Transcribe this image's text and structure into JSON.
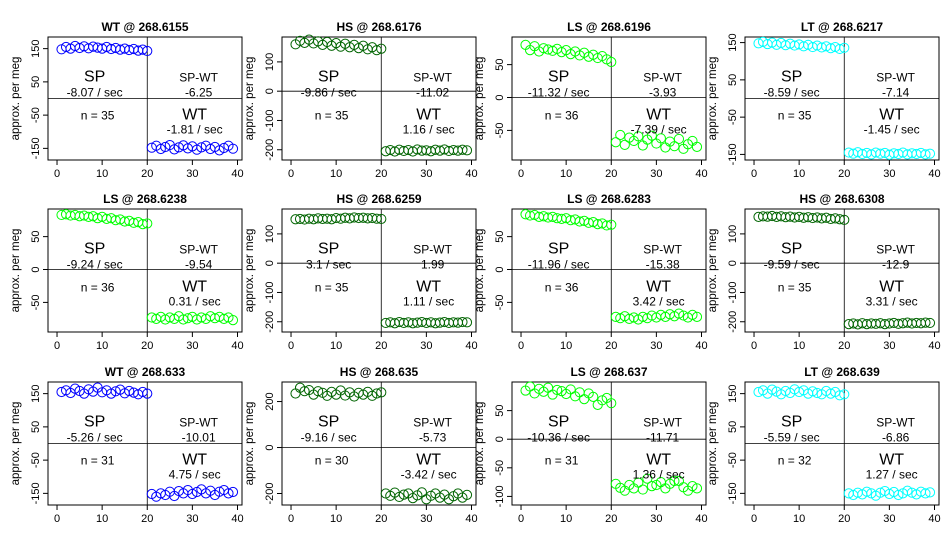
{
  "figure": {
    "ylabel": "approx. per meg",
    "ylabel_text": "approx. per meg"
  },
  "chart_data": [
    {
      "type": "scatter",
      "title": "WT @ 268.6155",
      "color": "#0000ff",
      "xlim": [
        -2,
        41
      ],
      "ylim": [
        -185,
        185
      ],
      "xticks": [
        0,
        10,
        20,
        30,
        40
      ],
      "yticks": [
        -150,
        -50,
        50,
        150
      ],
      "divider_x": 20,
      "divider_y": 0,
      "sp": {
        "label": "SP",
        "rate": "-8.07 / sec"
      },
      "spwt": {
        "label": "SP-WT",
        "value": "-6.25"
      },
      "wt": {
        "label": "WT",
        "rate": "-1.81 / sec"
      },
      "n": "n = 35",
      "sp_series": {
        "x0": 1,
        "step": 1,
        "values": [
          148,
          155,
          150,
          158,
          152,
          157,
          151,
          156,
          153,
          150,
          155,
          149,
          152,
          147,
          150,
          146,
          149,
          144,
          147,
          143
        ]
      },
      "wt_series": {
        "x0": 21,
        "step": 1,
        "values": [
          -148,
          -142,
          -152,
          -146,
          -140,
          -153,
          -147,
          -141,
          -150,
          -144,
          -154,
          -147,
          -142,
          -152,
          -146,
          -156,
          -149,
          -142,
          -151
        ]
      }
    },
    {
      "type": "scatter",
      "title": "HS @ 268.6176",
      "color": "#006400",
      "xlim": [
        -2,
        41
      ],
      "ylim": [
        -235,
        185
      ],
      "xticks": [
        0,
        10,
        20,
        30,
        40
      ],
      "yticks": [
        -200,
        -100,
        0,
        100
      ],
      "divider_x": 20,
      "divider_y": 0,
      "sp": {
        "label": "SP",
        "rate": "-9.86 / sec"
      },
      "spwt": {
        "label": "SP-WT",
        "value": "-11.02"
      },
      "wt": {
        "label": "WT",
        "rate": "1.16 / sec"
      },
      "n": "n = 35",
      "sp_series": {
        "x0": 1,
        "step": 1,
        "values": [
          160,
          172,
          165,
          176,
          163,
          170,
          158,
          168,
          155,
          164,
          152,
          162,
          150,
          158,
          147,
          155,
          143,
          150,
          140,
          145
        ]
      },
      "wt_series": {
        "x0": 21,
        "step": 1,
        "values": [
          -205,
          -201,
          -206,
          -200,
          -204,
          -201,
          -206,
          -199,
          -203,
          -202,
          -205,
          -200,
          -203,
          -199,
          -204,
          -201,
          -203,
          -200,
          -202
        ]
      }
    },
    {
      "type": "scatter",
      "title": "LS @ 268.6196",
      "color": "#00ff00",
      "xlim": [
        -2,
        41
      ],
      "ylim": [
        -95,
        92
      ],
      "xticks": [
        0,
        10,
        20,
        30,
        40
      ],
      "yticks": [
        -50,
        0,
        50
      ],
      "divider_x": 20,
      "divider_y": 0,
      "sp": {
        "label": "SP",
        "rate": "-11.32 / sec"
      },
      "spwt": {
        "label": "SP-WT",
        "value": "-3.93"
      },
      "wt": {
        "label": "WT",
        "rate": "-7.39 / sec"
      },
      "n": "n = 36",
      "sp_series": {
        "x0": 1,
        "step": 1,
        "values": [
          80,
          72,
          78,
          70,
          75,
          73,
          71,
          74,
          69,
          72,
          66,
          70,
          64,
          68,
          62,
          65,
          60,
          63,
          58,
          54
        ]
      },
      "wt_series": {
        "x0": 21,
        "step": 1,
        "values": [
          -68,
          -57,
          -72,
          -61,
          -66,
          -59,
          -73,
          -64,
          -58,
          -70,
          -62,
          -76,
          -67,
          -74,
          -63,
          -78,
          -71,
          -66,
          -75
        ]
      }
    },
    {
      "type": "scatter",
      "title": "LT @ 268.6217",
      "color": "#00ffff",
      "xlim": [
        -2,
        41
      ],
      "ylim": [
        -165,
        165
      ],
      "xticks": [
        0,
        10,
        20,
        30,
        40
      ],
      "yticks": [
        -150,
        -50,
        50,
        150
      ],
      "divider_x": 20,
      "divider_y": 0,
      "sp": {
        "label": "SP",
        "rate": "-8.59 / sec"
      },
      "spwt": {
        "label": "SP-WT",
        "value": "-7.14"
      },
      "wt": {
        "label": "WT",
        "rate": "-1.45 / sec"
      },
      "n": "n = 35",
      "sp_series": {
        "x0": 1,
        "step": 1,
        "values": [
          148,
          152,
          146,
          150,
          144,
          149,
          143,
          147,
          142,
          145,
          140,
          144,
          138,
          142,
          137,
          140,
          135,
          138,
          133,
          136
        ]
      },
      "wt_series": {
        "x0": 21,
        "step": 1,
        "values": [
          -145,
          -148,
          -144,
          -149,
          -146,
          -150,
          -145,
          -148,
          -146,
          -151,
          -147,
          -149,
          -145,
          -150,
          -147,
          -149,
          -146,
          -150,
          -148
        ]
      }
    },
    {
      "type": "scatter",
      "title": "LS @ 268.6238",
      "color": "#00ff00",
      "xlim": [
        -2,
        41
      ],
      "ylim": [
        -95,
        92
      ],
      "xticks": [
        0,
        10,
        20,
        30,
        40
      ],
      "yticks": [
        -50,
        0,
        50
      ],
      "divider_x": 20,
      "divider_y": 0,
      "sp": {
        "label": "SP",
        "rate": "-9.24 / sec"
      },
      "spwt": {
        "label": "SP-WT",
        "value": "-9.54"
      },
      "wt": {
        "label": "WT",
        "rate": "0.31 / sec"
      },
      "n": "n = 36",
      "sp_series": {
        "x0": 1,
        "step": 1,
        "values": [
          83,
          84,
          82,
          83,
          81,
          82,
          80,
          81,
          78,
          80,
          77,
          78,
          75,
          76,
          73,
          74,
          71,
          72,
          69,
          70
        ]
      },
      "wt_series": {
        "x0": 21,
        "step": 1,
        "values": [
          -73,
          -75,
          -72,
          -76,
          -73,
          -75,
          -71,
          -76,
          -74,
          -72,
          -76,
          -73,
          -75,
          -71,
          -74,
          -72,
          -75,
          -73,
          -77
        ]
      }
    },
    {
      "type": "scatter",
      "title": "HS @ 268.6259",
      "color": "#006400",
      "xlim": [
        -2,
        41
      ],
      "ylim": [
        -235,
        185
      ],
      "xticks": [
        0,
        10,
        20,
        30,
        40
      ],
      "yticks": [
        -200,
        -100,
        0,
        100
      ],
      "divider_x": 20,
      "divider_y": 0,
      "sp": {
        "label": "SP",
        "rate": "3.1 / sec"
      },
      "spwt": {
        "label": "SP-WT",
        "value": "1.99"
      },
      "wt": {
        "label": "WT",
        "rate": "1.11 / sec"
      },
      "n": "n = 35",
      "sp_series": {
        "x0": 1,
        "step": 1,
        "values": [
          150,
          151,
          149,
          152,
          150,
          153,
          151,
          152,
          150,
          154,
          152,
          155,
          153,
          156,
          154,
          155,
          153,
          154,
          152,
          151
        ]
      },
      "wt_series": {
        "x0": 21,
        "step": 1,
        "values": [
          -204,
          -202,
          -205,
          -201,
          -204,
          -202,
          -205,
          -203,
          -201,
          -204,
          -202,
          -205,
          -203,
          -201,
          -204,
          -202,
          -203,
          -201,
          -202
        ]
      }
    },
    {
      "type": "scatter",
      "title": "LS @ 268.6283",
      "color": "#00ff00",
      "xlim": [
        -2,
        41
      ],
      "ylim": [
        -95,
        92
      ],
      "xticks": [
        0,
        10,
        20,
        30,
        40
      ],
      "yticks": [
        -50,
        0,
        50
      ],
      "divider_x": 20,
      "divider_y": 0,
      "sp": {
        "label": "SP",
        "rate": "-11.96 / sec"
      },
      "spwt": {
        "label": "SP-WT",
        "value": "-15.38"
      },
      "wt": {
        "label": "WT",
        "rate": "3.42 / sec"
      },
      "n": "n = 36",
      "sp_series": {
        "x0": 1,
        "step": 1,
        "values": [
          84,
          82,
          83,
          80,
          81,
          79,
          80,
          78,
          77,
          78,
          75,
          76,
          73,
          74,
          71,
          72,
          69,
          70,
          67,
          68
        ]
      },
      "wt_series": {
        "x0": 21,
        "step": 1,
        "values": [
          -72,
          -74,
          -71,
          -75,
          -73,
          -76,
          -72,
          -74,
          -70,
          -73,
          -69,
          -72,
          -68,
          -71,
          -67,
          -70,
          -73,
          -69,
          -72
        ]
      }
    },
    {
      "type": "scatter",
      "title": "HS @ 268.6308",
      "color": "#006400",
      "xlim": [
        -2,
        41
      ],
      "ylim": [
        -235,
        185
      ],
      "xticks": [
        0,
        10,
        20,
        30,
        40
      ],
      "yticks": [
        -200,
        -100,
        0,
        100
      ],
      "divider_x": 20,
      "divider_y": 0,
      "sp": {
        "label": "SP",
        "rate": "-9.59 / sec"
      },
      "spwt": {
        "label": "SP-WT",
        "value": "-12.9"
      },
      "wt": {
        "label": "WT",
        "rate": "3.31 / sec"
      },
      "n": "n = 35",
      "sp_series": {
        "x0": 1,
        "step": 1,
        "values": [
          158,
          160,
          159,
          161,
          158,
          160,
          157,
          159,
          156,
          158,
          155,
          157,
          154,
          156,
          153,
          155,
          151,
          153,
          150,
          148
        ]
      },
      "wt_series": {
        "x0": 21,
        "step": 1,
        "values": [
          -208,
          -206,
          -209,
          -205,
          -208,
          -206,
          -207,
          -205,
          -208,
          -206,
          -204,
          -207,
          -205,
          -203,
          -206,
          -204,
          -205,
          -203,
          -204
        ]
      }
    },
    {
      "type": "scatter",
      "title": "WT @ 268.633",
      "color": "#0000ff",
      "xlim": [
        -2,
        41
      ],
      "ylim": [
        -185,
        185
      ],
      "xticks": [
        0,
        10,
        20,
        30,
        40
      ],
      "yticks": [
        -150,
        -50,
        50,
        150
      ],
      "divider_x": 20,
      "divider_y": 0,
      "sp": {
        "label": "SP",
        "rate": "-5.26 / sec"
      },
      "spwt": {
        "label": "SP-WT",
        "value": "-10.01"
      },
      "wt": {
        "label": "WT",
        "rate": "4.75 / sec"
      },
      "n": "n = 31",
      "sp_series": {
        "x0": 1,
        "step": 1,
        "values": [
          155,
          160,
          152,
          165,
          158,
          150,
          163,
          156,
          168,
          154,
          160,
          150,
          157,
          162,
          151,
          158,
          153,
          148,
          155,
          150
        ]
      },
      "wt_series": {
        "x0": 21,
        "step": 1,
        "values": [
          -152,
          -160,
          -150,
          -155,
          -145,
          -158,
          -143,
          -150,
          -140,
          -152,
          -146,
          -138,
          -150,
          -142,
          -155,
          -145,
          -140,
          -150,
          -146
        ]
      }
    },
    {
      "type": "scatter",
      "title": "HS @ 268.635",
      "color": "#006400",
      "xlim": [
        -2,
        41
      ],
      "ylim": [
        -250,
        285
      ],
      "xticks": [
        0,
        10,
        20,
        30,
        40
      ],
      "yticks": [
        -200,
        0,
        200
      ],
      "divider_x": 20,
      "divider_y": 0,
      "sp": {
        "label": "SP",
        "rate": "-9.16 / sec"
      },
      "spwt": {
        "label": "SP-WT",
        "value": "-5.73"
      },
      "wt": {
        "label": "WT",
        "rate": "-3.42 / sec"
      },
      "n": "n = 30",
      "sp_series": {
        "x0": 1,
        "step": 1,
        "values": [
          235,
          260,
          245,
          250,
          230,
          245,
          238,
          225,
          242,
          230,
          248,
          226,
          240,
          222,
          238,
          230,
          242,
          225,
          235,
          240
        ]
      },
      "wt_series": {
        "x0": 21,
        "step": 1,
        "values": [
          -200,
          -210,
          -196,
          -215,
          -205,
          -200,
          -220,
          -208,
          -195,
          -225,
          -210,
          -200,
          -218,
          -205,
          -225,
          -212,
          -200,
          -218,
          -206
        ]
      }
    },
    {
      "type": "scatter",
      "title": "LS @ 268.637",
      "color": "#00ff00",
      "xlim": [
        -2,
        41
      ],
      "ylim": [
        -115,
        100
      ],
      "xticks": [
        0,
        10,
        20,
        30,
        40
      ],
      "yticks": [
        -100,
        -50,
        0,
        50
      ],
      "divider_x": 20,
      "divider_y": 0,
      "sp": {
        "label": "SP",
        "rate": "-10.36 / sec"
      },
      "spwt": {
        "label": "SP-WT",
        "value": "-11.71"
      },
      "wt": {
        "label": "WT",
        "rate": "1.36 / sec"
      },
      "n": "n = 31",
      "sp_series": {
        "x0": 1,
        "step": 1,
        "values": [
          85,
          92,
          80,
          88,
          83,
          90,
          78,
          86,
          84,
          79,
          87,
          75,
          82,
          70,
          80,
          74,
          60,
          68,
          72,
          63
        ]
      },
      "wt_series": {
        "x0": 21,
        "step": 1,
        "values": [
          -78,
          -85,
          -90,
          -80,
          -86,
          -76,
          -88,
          -69,
          -82,
          -80,
          -75,
          -86,
          -78,
          -73,
          -73,
          -84,
          -90,
          -82,
          -86
        ]
      }
    },
    {
      "type": "scatter",
      "title": "LT @ 268.639",
      "color": "#00ffff",
      "xlim": [
        -2,
        41
      ],
      "ylim": [
        -185,
        185
      ],
      "xticks": [
        0,
        10,
        20,
        30,
        40
      ],
      "yticks": [
        -150,
        -50,
        50,
        150
      ],
      "divider_x": 20,
      "divider_y": 0,
      "sp": {
        "label": "SP",
        "rate": "-5.59 / sec"
      },
      "spwt": {
        "label": "SP-WT",
        "value": "-6.86"
      },
      "wt": {
        "label": "WT",
        "rate": "1.27 / sec"
      },
      "n": "n = 32",
      "sp_series": {
        "x0": 1,
        "step": 1,
        "values": [
          155,
          160,
          150,
          162,
          156,
          148,
          158,
          152,
          163,
          155,
          160,
          150,
          157,
          152,
          148,
          158,
          150,
          155,
          145,
          148
        ]
      },
      "wt_series": {
        "x0": 21,
        "step": 1,
        "values": [
          -150,
          -155,
          -148,
          -153,
          -145,
          -150,
          -157,
          -148,
          -143,
          -152,
          -146,
          -155,
          -150,
          -142,
          -148,
          -153,
          -145,
          -150,
          -147
        ]
      }
    }
  ]
}
